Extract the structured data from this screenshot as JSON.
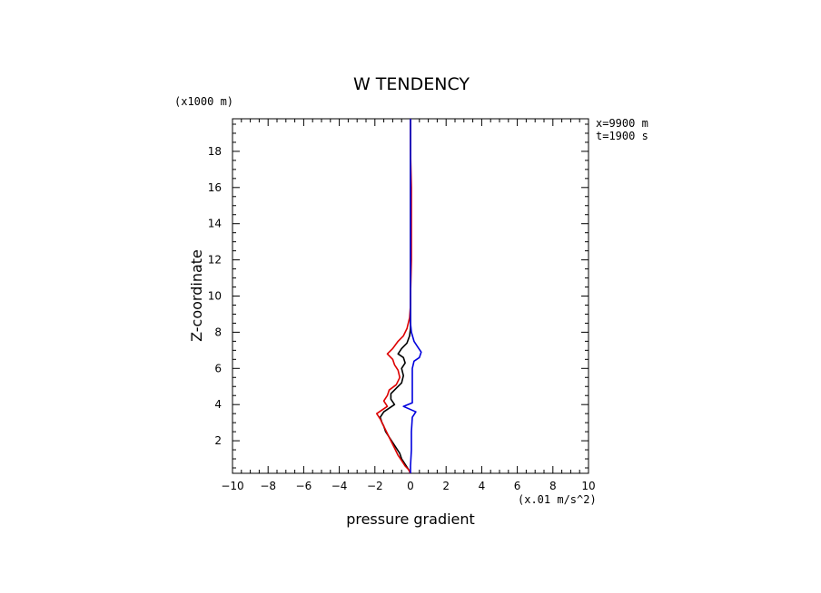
{
  "chart_data": {
    "type": "line",
    "title": "W TENDENCY",
    "xlabel": "pressure gradient",
    "ylabel": "Z-coordinate",
    "x_unit": "(x.01 m/s^2)",
    "y_unit": "(x1000 m)",
    "info": [
      "x=9900 m",
      "t=1900 s"
    ],
    "xlim": [
      -10,
      10
    ],
    "ylim": [
      0.2,
      19.8
    ],
    "x_ticks": [
      -10,
      -8,
      -6,
      -4,
      -2,
      0,
      2,
      4,
      6,
      8,
      10
    ],
    "x_tick_labels": [
      "−10",
      "−8",
      "−6",
      "−4",
      "−2",
      "0",
      "2",
      "4",
      "6",
      "8",
      "10"
    ],
    "y_ticks": [
      2,
      4,
      6,
      8,
      10,
      12,
      14,
      16,
      18
    ],
    "y_tick_labels": [
      "2",
      "4",
      "6",
      "8",
      "10",
      "12",
      "14",
      "16",
      "18"
    ],
    "grid": false,
    "series": [
      {
        "color": "#000000",
        "points": [
          [
            0,
            0.2
          ],
          [
            -0.1,
            0.4
          ],
          [
            -0.3,
            0.7
          ],
          [
            -0.5,
            1.0
          ],
          [
            -0.6,
            1.3
          ],
          [
            -0.8,
            1.6
          ],
          [
            -1.0,
            1.9
          ],
          [
            -1.2,
            2.2
          ],
          [
            -1.4,
            2.5
          ],
          [
            -1.5,
            2.8
          ],
          [
            -1.6,
            3.0
          ],
          [
            -1.7,
            3.3
          ],
          [
            -1.5,
            3.6
          ],
          [
            -1.2,
            3.8
          ],
          [
            -0.9,
            4.0
          ],
          [
            -1.1,
            4.3
          ],
          [
            -1.1,
            4.6
          ],
          [
            -0.8,
            4.9
          ],
          [
            -0.5,
            5.2
          ],
          [
            -0.4,
            5.6
          ],
          [
            -0.5,
            6.0
          ],
          [
            -0.3,
            6.3
          ],
          [
            -0.4,
            6.6
          ],
          [
            -0.7,
            6.8
          ],
          [
            -0.5,
            7.1
          ],
          [
            -0.2,
            7.4
          ],
          [
            -0.05,
            7.8
          ],
          [
            0,
            8.2
          ],
          [
            0,
            9
          ],
          [
            0,
            10
          ],
          [
            0,
            12
          ],
          [
            0,
            14
          ],
          [
            0,
            16
          ],
          [
            0,
            18
          ],
          [
            0,
            19.8
          ]
        ]
      },
      {
        "color": "#dd0000",
        "points": [
          [
            0,
            0.2
          ],
          [
            -0.1,
            0.4
          ],
          [
            -0.3,
            0.6
          ],
          [
            -0.5,
            0.9
          ],
          [
            -0.7,
            1.2
          ],
          [
            -0.9,
            1.6
          ],
          [
            -1.1,
            2.0
          ],
          [
            -1.3,
            2.4
          ],
          [
            -1.5,
            2.8
          ],
          [
            -1.7,
            3.2
          ],
          [
            -1.9,
            3.5
          ],
          [
            -1.6,
            3.7
          ],
          [
            -1.3,
            3.9
          ],
          [
            -1.5,
            4.2
          ],
          [
            -1.3,
            4.5
          ],
          [
            -1.2,
            4.8
          ],
          [
            -0.8,
            5.1
          ],
          [
            -0.6,
            5.5
          ],
          [
            -0.7,
            5.9
          ],
          [
            -0.9,
            6.2
          ],
          [
            -1.0,
            6.5
          ],
          [
            -1.3,
            6.8
          ],
          [
            -1.0,
            7.1
          ],
          [
            -0.7,
            7.5
          ],
          [
            -0.4,
            7.8
          ],
          [
            -0.2,
            8.2
          ],
          [
            -0.05,
            8.8
          ],
          [
            0,
            9.5
          ],
          [
            0,
            10
          ],
          [
            0.05,
            12
          ],
          [
            0.05,
            14
          ],
          [
            0.05,
            16
          ],
          [
            0,
            18
          ],
          [
            0,
            19.8
          ]
        ]
      },
      {
        "color": "#0000dd",
        "points": [
          [
            0,
            0.2
          ],
          [
            0,
            0.6
          ],
          [
            0.05,
            1.5
          ],
          [
            0.05,
            2.5
          ],
          [
            0.1,
            3.3
          ],
          [
            0.3,
            3.6
          ],
          [
            -0.4,
            3.9
          ],
          [
            0.1,
            4.1
          ],
          [
            0.1,
            4.5
          ],
          [
            0.1,
            5.0
          ],
          [
            0.1,
            5.6
          ],
          [
            0.1,
            6.0
          ],
          [
            0.2,
            6.4
          ],
          [
            0.5,
            6.6
          ],
          [
            0.6,
            6.9
          ],
          [
            0.4,
            7.2
          ],
          [
            0.2,
            7.5
          ],
          [
            0.05,
            8.0
          ],
          [
            0,
            8.5
          ],
          [
            0,
            9
          ],
          [
            0,
            10
          ],
          [
            0,
            12
          ],
          [
            0,
            14
          ],
          [
            0,
            16
          ],
          [
            0,
            18
          ],
          [
            0,
            19.8
          ]
        ]
      }
    ]
  }
}
